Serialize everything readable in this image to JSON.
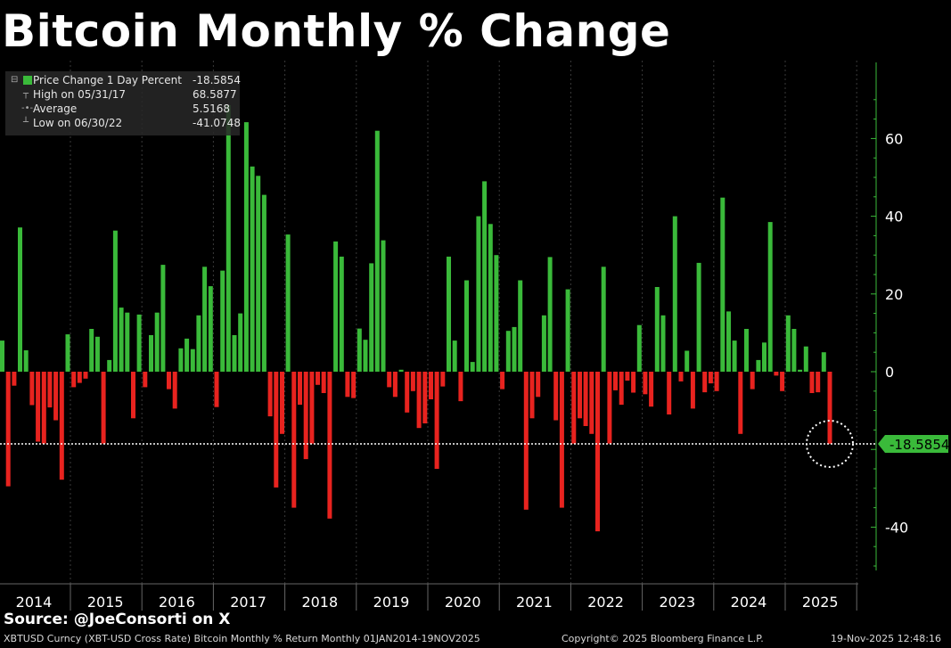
{
  "title": "Bitcoin Monthly % Change",
  "legend": {
    "series_label": "Price Change 1 Day Percent",
    "series_value": "-18.5854",
    "high_label": "High on 05/31/17",
    "high_value": "68.5877",
    "average_label": "Average",
    "average_value": "5.5168",
    "low_label": "Low on 06/30/22",
    "low_value": "-41.0748"
  },
  "source": "Source: @JoeConsorti on X",
  "footer": {
    "description": "XBTUSD Curncy (XBT-USD Cross Rate) Bitcoin Monthly % Return Monthly 01JAN2014-19NOV2025",
    "copyright": "Copyright© 2025 Bloomberg Finance L.P.",
    "timestamp": "19-Nov-2025 12:48:16"
  },
  "colors": {
    "positive": "#3aba3a",
    "negative": "#e8231f",
    "background": "#000000",
    "axis": "#3aba3a"
  },
  "chart_data": {
    "type": "bar",
    "title": "Bitcoin Monthly % Change",
    "ylabel": "Price Change 1 Day Percent",
    "ylim": [
      -52,
      80
    ],
    "yticks": [
      -40,
      -20,
      0,
      20,
      40,
      60
    ],
    "ytick_labels": [
      "-40",
      "",
      "0",
      "20",
      "40",
      "60"
    ],
    "x_tick_labels": [
      "2014",
      "2015",
      "2016",
      "2017",
      "2018",
      "2019",
      "2020",
      "2021",
      "2022",
      "2023",
      "2024",
      "2025"
    ],
    "last_value_label": "-18.5854",
    "reference_line": -18.5854,
    "values": [
      8.0,
      -29.5,
      -3.6,
      37.1,
      5.5,
      -8.6,
      -18.0,
      -18.5,
      -9.2,
      -12.5,
      -27.8,
      9.6,
      -4.0,
      -2.9,
      -1.8,
      11.0,
      9.0,
      -18.5,
      3.0,
      36.3,
      16.5,
      15.2,
      -12.0,
      14.7,
      -4.0,
      9.4,
      15.2,
      27.5,
      -4.5,
      -9.5,
      6.0,
      8.5,
      5.8,
      14.5,
      27.0,
      22.0,
      -9.1,
      26.0,
      68.5877,
      9.4,
      15.0,
      64.2,
      52.8,
      50.4,
      45.5,
      -11.5,
      -29.8,
      -16.0,
      35.3,
      -35.0,
      -8.5,
      -22.5,
      -18.5,
      -3.4,
      -5.5,
      -37.8,
      33.5,
      29.6,
      -6.5,
      -6.8,
      11.1,
      8.2,
      27.9,
      62.0,
      33.8,
      -4.0,
      -6.5,
      0.5,
      -10.5,
      -5.0,
      -14.5,
      -13.3,
      -7.1,
      -25.0,
      -3.8,
      29.6,
      8.0,
      -7.6,
      23.5,
      2.5,
      40.0,
      49.0,
      38.0,
      30.0,
      -4.5,
      10.5,
      11.5,
      23.5,
      -35.5,
      -12.0,
      -6.5,
      14.5,
      29.5,
      -12.5,
      -35.0,
      21.2,
      -18.5,
      -12.0,
      -14.0,
      -16.0,
      -41.0748,
      27.0,
      -18.5,
      -4.8,
      -8.5,
      -2.3,
      -5.4,
      12.0,
      -5.8,
      -9.0,
      21.8,
      14.5,
      -11.0,
      40.0,
      -2.5,
      5.4,
      -9.5,
      28.0,
      -5.3,
      -3.0,
      -5.0,
      44.8,
      15.5,
      8.0,
      -16.0,
      11.0,
      -4.5,
      3.0,
      7.5,
      38.5,
      -1.0,
      -5.0,
      14.5,
      11.0,
      0.5,
      6.5,
      -5.5,
      -5.3,
      5.0,
      -18.5854
    ]
  }
}
